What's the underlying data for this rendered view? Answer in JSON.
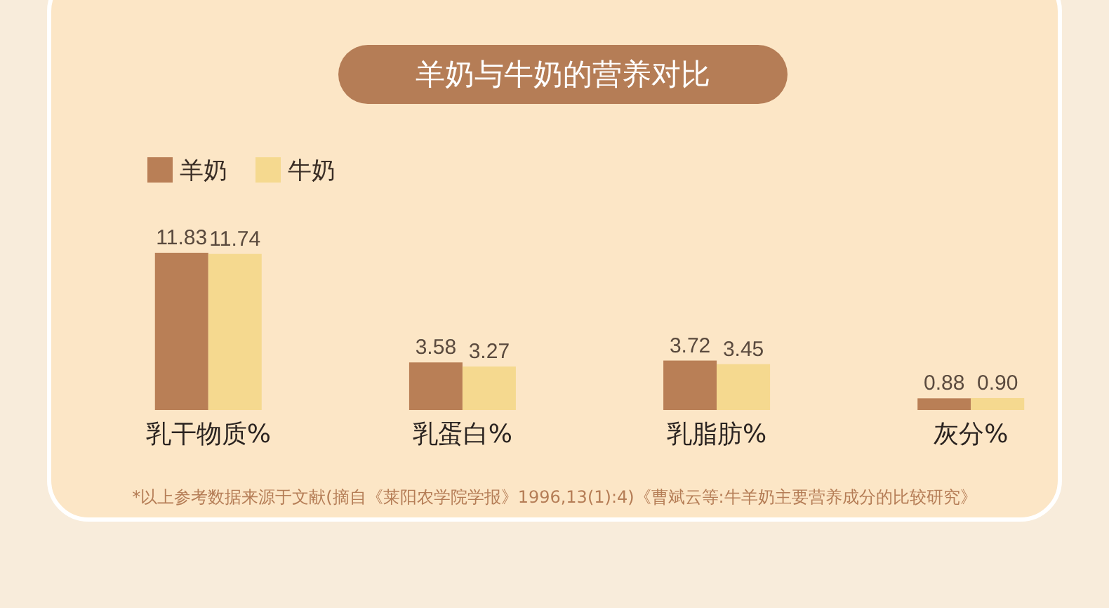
{
  "chart_data": {
    "type": "bar",
    "title": "羊奶与牛奶的营养对比",
    "categories": [
      "乳干物质%",
      "乳蛋白%",
      "乳脂肪%",
      "灰分%"
    ],
    "series": [
      {
        "name": "羊奶",
        "color": "#b97f56",
        "values": [
          11.83,
          3.58,
          3.72,
          0.88
        ],
        "value_labels": [
          "11.83",
          "3.58",
          "3.72",
          "0.88"
        ]
      },
      {
        "name": "牛奶",
        "color": "#f5d98f",
        "values": [
          11.74,
          3.27,
          3.45,
          0.9
        ],
        "value_labels": [
          "11.74",
          "3.27",
          "3.45",
          "0.90"
        ]
      }
    ],
    "legend": "top left",
    "annotations": [
      "*以上参考数据来源于文献(摘自《莱阳农学院学报》1996,13(1):4)《曹斌云等:牛羊奶主要营养成分的比较研究》"
    ]
  }
}
